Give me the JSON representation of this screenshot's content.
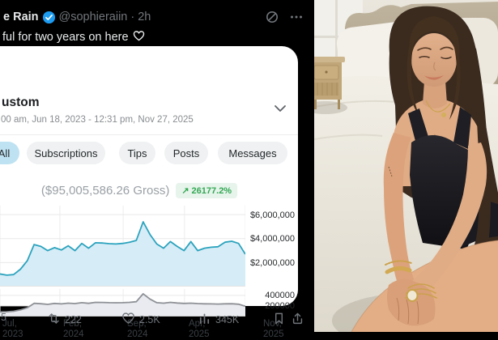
{
  "tweet": {
    "author_name_partial": "e Rain",
    "handle": "@sophieraiin",
    "separator": "·",
    "timestamp": "2h",
    "text_partial": "ful for two years on here",
    "emoji": "🫶",
    "engagement": {
      "reply_count_partial": "5",
      "repost_count": "222",
      "like_count": "2.5K",
      "view_count": "345K"
    }
  },
  "dashboard": {
    "range_label_partial": "ustom",
    "date_range_partial": "00 am, Jun 18, 2023 - 12:31 pm, Nov 27, 2025",
    "tabs": [
      {
        "label": "All",
        "active": true
      },
      {
        "label": "Subscriptions",
        "active": false
      },
      {
        "label": "Tips",
        "active": false
      },
      {
        "label": "Posts",
        "active": false
      },
      {
        "label": "Messages",
        "active": false
      }
    ],
    "gross_label": "($95,005,586.26 Gross)",
    "growth_arrow": "↗",
    "growth_value": "26177.2%"
  },
  "chart_data": [
    {
      "type": "area",
      "name": "gross-earnings-over-time",
      "x_range": [
        "Jun 2023",
        "Nov 2025"
      ],
      "x_ticks": [
        {
          "l1": "Jul,",
          "l2": "2023",
          "frac": 0.0
        },
        {
          "l1": "Feb,",
          "l2": "2024",
          "frac": 0.244
        },
        {
          "l1": "Sep,",
          "l2": "2024",
          "frac": 0.502
        },
        {
          "l1": "Apr,",
          "l2": "2025",
          "frac": 0.752
        },
        {
          "l1": "Nov,",
          "l2": "2025",
          "frac": 1.0
        }
      ],
      "y_ticks": [
        {
          "label": "$6,000,000",
          "value": 6000000
        },
        {
          "label": "$4,000,000",
          "value": 4000000
        },
        {
          "label": "$2,000,000",
          "value": 2000000
        }
      ],
      "y_max": 6750000,
      "grid": true,
      "legend": "none",
      "line_color": "#2ba3bd",
      "fill_color": "#d6ecf7",
      "values": [
        1050000,
        950000,
        1000000,
        1450000,
        2150000,
        3500000,
        3350000,
        3000000,
        3250000,
        3050000,
        3400000,
        3000000,
        3600000,
        3200000,
        3650000,
        3630000,
        3580000,
        3550000,
        3600000,
        3700000,
        3850000,
        5400000,
        4350000,
        3550000,
        3200000,
        3750000,
        3350000,
        3000000,
        3750000,
        3000000,
        3200000,
        3280000,
        3320000,
        3700000,
        3780000,
        3600000,
        2700000
      ]
    },
    {
      "type": "area",
      "name": "secondary-metric-over-time",
      "y_ticks": [
        {
          "label": "400000",
          "value": 400000
        },
        {
          "label": "200000",
          "value": 200000
        }
      ],
      "y_max": 520000,
      "grid": true,
      "legend": "none",
      "line_color": "#8e9196",
      "fill_color": "#e9ebf0",
      "values": [
        85000,
        90000,
        100000,
        125000,
        165000,
        250000,
        242000,
        230000,
        248000,
        238000,
        252000,
        244000,
        262000,
        250000,
        268000,
        266000,
        262000,
        260000,
        262000,
        268000,
        280000,
        430000,
        330000,
        262000,
        252000,
        268000,
        256000,
        248000,
        252000,
        244000,
        240000,
        238000,
        236000,
        240000,
        242000,
        232000,
        195000
      ]
    }
  ],
  "photo": {
    "alt": "Woman with long brown hair winking and smiling, wearing a black bodysuit and gold bracelets, kneeling on a white bed with a beige upholstered headboard, white pillows and a wooden nightstand"
  },
  "colors": {
    "verified_blue": "#1d9bf0",
    "icon_gray": "#71767b",
    "accent_teal": "#2ba3bd",
    "area_fill_blue": "#d6ecf7",
    "badge_green": "#34a853",
    "badge_bg": "#e7f4ec",
    "tab_active_bg": "#bfe2f2",
    "tab_bg": "#eff1f2"
  }
}
